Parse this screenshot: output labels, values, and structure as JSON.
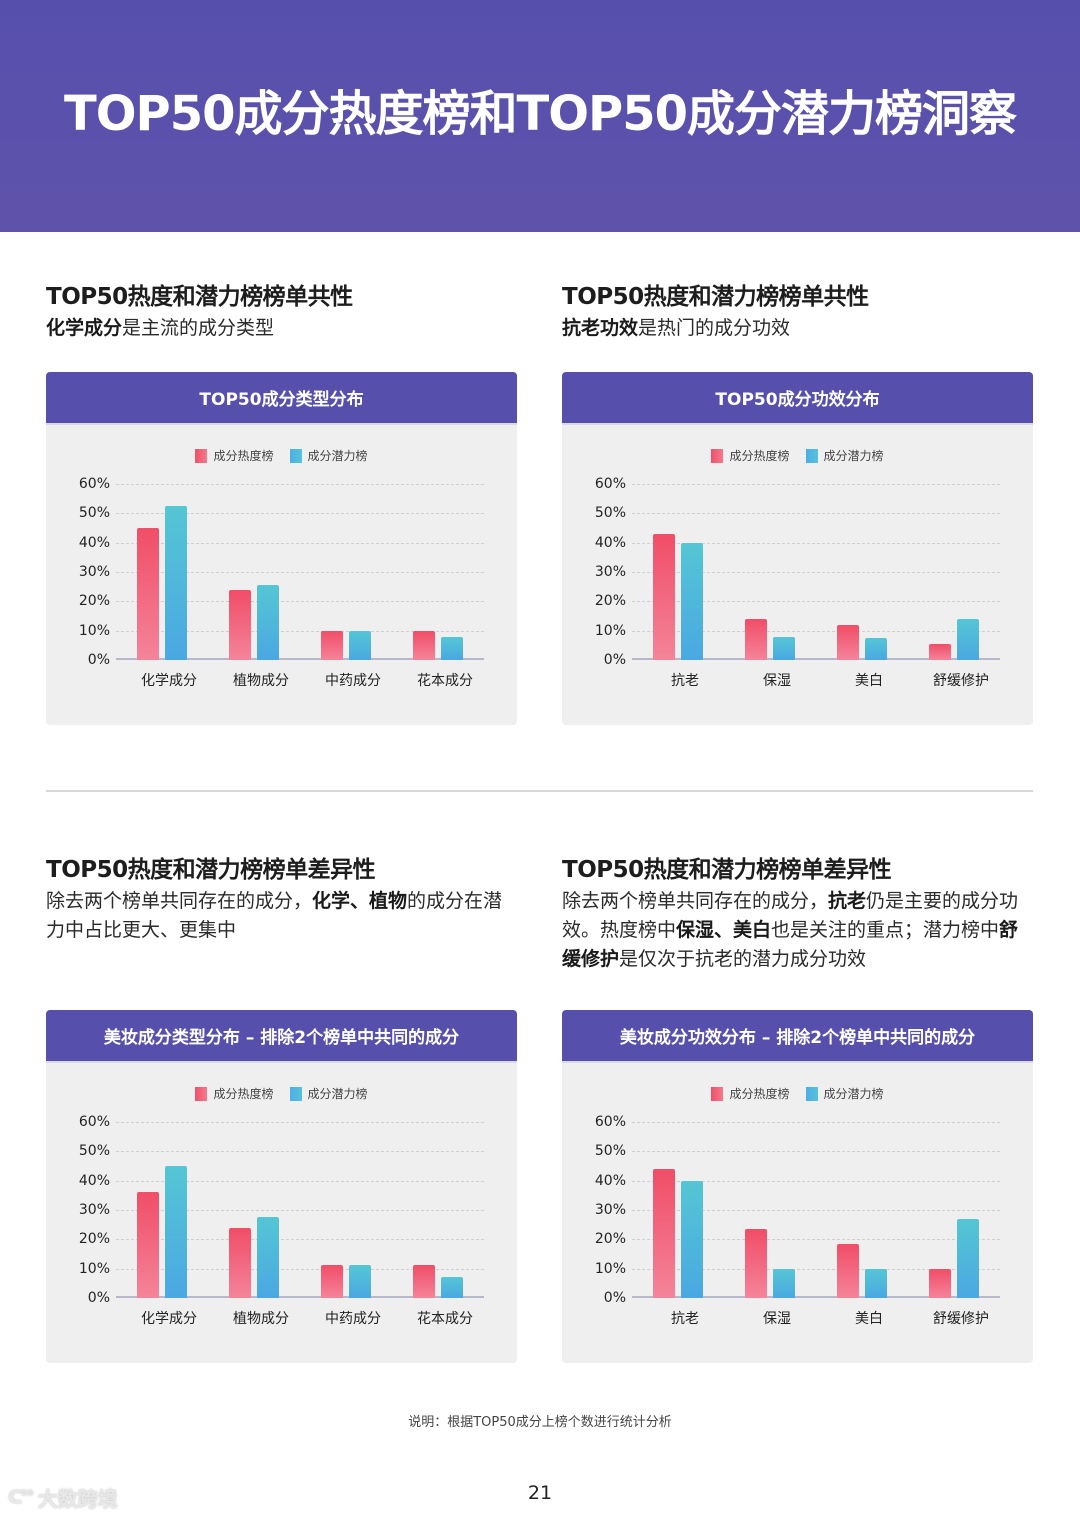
{
  "header": {
    "title": "TOP50成分热度榜和TOP50成分潜力榜洞察"
  },
  "colors": {
    "banner": "#5650ac",
    "hot_series": "#f14d67",
    "potential_series": "#4eaee6",
    "card_bg": "#efefef"
  },
  "sections": [
    {
      "title": "TOP50热度和潜力榜榜单共性",
      "desc_bold": "化学成分",
      "desc_rest": "是主流的成分类型",
      "chart_title": "TOP50成分类型分布"
    },
    {
      "title": "TOP50热度和潜力榜榜单共性",
      "desc_bold": "抗老功效",
      "desc_rest": "是热门的成分功效",
      "chart_title": "TOP50成分功效分布"
    },
    {
      "title": "TOP50热度和潜力榜榜单差异性",
      "desc_parts": [
        "除去两个榜单共同存在的成分，",
        "化学、植物",
        "的成分在潜力中占比更大、更集中"
      ],
      "chart_title": "美妆成分类型分布 – 排除2个榜单中共同的成分"
    },
    {
      "title": "TOP50热度和潜力榜榜单差异性",
      "desc_parts": [
        "除去两个榜单共同存在的成分，",
        "抗老",
        "仍是主要的成分功效。热度榜中",
        "保湿、美白",
        "也是关注的重点；潜力榜中",
        "舒缓修护",
        "是仅次于抗老的潜力成分功效"
      ],
      "chart_title": "美妆成分功效分布 – 排除2个榜单中共同的成分"
    }
  ],
  "legend": {
    "hot": "成分热度榜",
    "potential": "成分潜力榜"
  },
  "y_ticks": [
    "60%",
    "50%",
    "40%",
    "30%",
    "20%",
    "10%",
    "0%"
  ],
  "chart_data": [
    {
      "type": "bar",
      "title": "TOP50成分类型分布",
      "categories": [
        "化学成分",
        "植物成分",
        "中药成分",
        "花本成分"
      ],
      "series": [
        {
          "name": "成分热度榜",
          "values": [
            45,
            24,
            10,
            10
          ]
        },
        {
          "name": "成分潜力榜",
          "values": [
            52.5,
            25.5,
            10,
            8
          ]
        }
      ],
      "xlabel": "",
      "ylabel": "",
      "ylim": [
        0,
        60
      ],
      "yticks": [
        0,
        10,
        20,
        30,
        40,
        50,
        60
      ],
      "grid": true,
      "legend_position": "top"
    },
    {
      "type": "bar",
      "title": "TOP50成分功效分布",
      "categories": [
        "抗老",
        "保湿",
        "美白",
        "舒缓修护"
      ],
      "series": [
        {
          "name": "成分热度榜",
          "values": [
            43,
            14,
            12,
            5.5
          ]
        },
        {
          "name": "成分潜力榜",
          "values": [
            40,
            7.7,
            7.5,
            14
          ]
        }
      ],
      "xlabel": "",
      "ylabel": "",
      "ylim": [
        0,
        60
      ],
      "yticks": [
        0,
        10,
        20,
        30,
        40,
        50,
        60
      ],
      "grid": true,
      "legend_position": "top"
    },
    {
      "type": "bar",
      "title": "美妆成分类型分布 – 排除2个榜单中共同的成分",
      "categories": [
        "化学成分",
        "植物成分",
        "中药成分",
        "花本成分"
      ],
      "series": [
        {
          "name": "成分热度榜",
          "values": [
            36,
            24,
            11.3,
            11.3
          ]
        },
        {
          "name": "成分潜力榜",
          "values": [
            45,
            27.5,
            11.3,
            7.3
          ]
        }
      ],
      "xlabel": "",
      "ylabel": "",
      "ylim": [
        0,
        60
      ],
      "yticks": [
        0,
        10,
        20,
        30,
        40,
        50,
        60
      ],
      "grid": true,
      "legend_position": "top"
    },
    {
      "type": "bar",
      "title": "美妆成分功效分布 – 排除2个榜单中共同的成分",
      "categories": [
        "抗老",
        "保湿",
        "美白",
        "舒缓修护"
      ],
      "series": [
        {
          "name": "成分热度榜",
          "values": [
            44,
            23.6,
            18.3,
            10
          ]
        },
        {
          "name": "成分潜力榜",
          "values": [
            40,
            10,
            10,
            26.8
          ]
        }
      ],
      "xlabel": "",
      "ylabel": "",
      "ylim": [
        0,
        60
      ],
      "yticks": [
        0,
        10,
        20,
        30,
        40,
        50,
        60
      ],
      "grid": true,
      "legend_position": "top"
    }
  ],
  "footer": {
    "note": "说明：根据TOP50成分上榜个数进行统计分析",
    "page_number": "21",
    "watermark": "大数跨境"
  }
}
